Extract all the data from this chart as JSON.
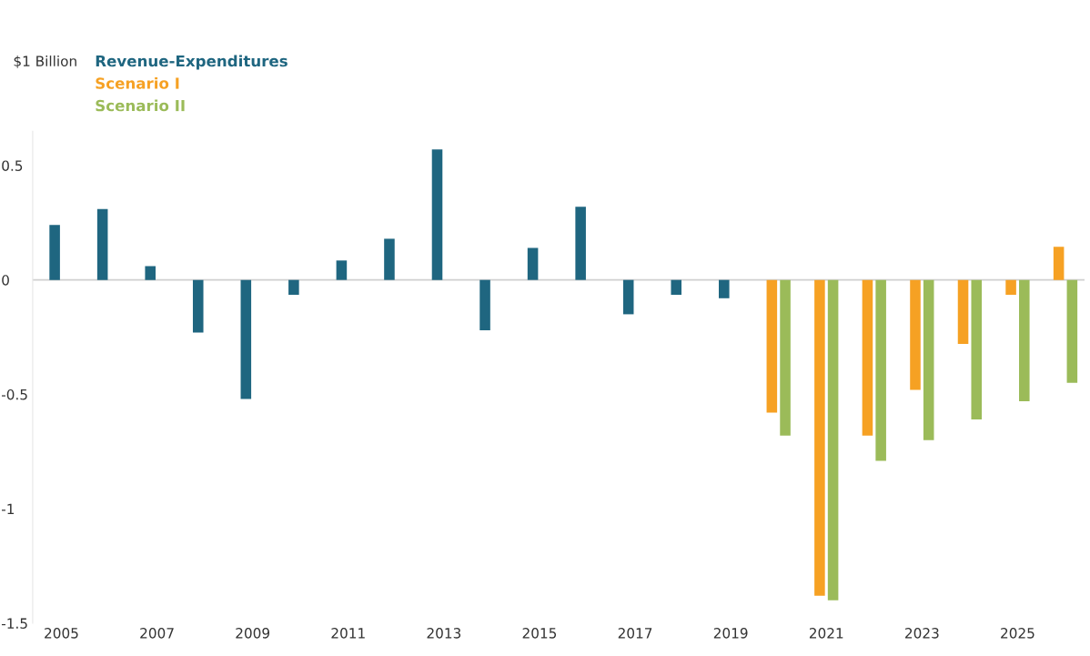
{
  "chart_data": {
    "type": "bar",
    "ylabel": "$1 Billion",
    "categories": [
      "2005",
      null,
      "2007",
      null,
      "2009",
      null,
      "2011",
      null,
      "2013",
      null,
      "2015",
      null,
      "2017",
      null,
      "2019",
      null,
      "2021",
      null,
      "2023",
      null,
      "2025",
      null
    ],
    "series": [
      {
        "name": "Revenue-Expenditures",
        "color": "#1f6680",
        "values": [
          0.24,
          0.31,
          0.06,
          -0.23,
          -0.52,
          -0.065,
          0.085,
          0.18,
          0.57,
          -0.22,
          0.14,
          0.32,
          -0.15,
          -0.065,
          -0.08,
          null,
          null,
          null,
          null,
          null,
          null,
          null
        ]
      },
      {
        "name": "Scenario I",
        "color": "#f6a123",
        "values": [
          null,
          null,
          null,
          null,
          null,
          null,
          null,
          null,
          null,
          null,
          null,
          null,
          null,
          null,
          null,
          -0.58,
          -1.38,
          -0.68,
          -0.48,
          -0.28,
          -0.065,
          0.145
        ]
      },
      {
        "name": "Scenario II",
        "color": "#9bbb59",
        "values": [
          null,
          null,
          null,
          null,
          null,
          null,
          null,
          null,
          null,
          null,
          null,
          null,
          null,
          null,
          null,
          -0.68,
          -1.4,
          -0.79,
          -0.7,
          -0.61,
          -0.53,
          -0.45
        ]
      }
    ],
    "ylim": [
      -1.5,
      0.65
    ],
    "yticks": [
      0.5,
      0,
      {
        "value": -0.5,
        "label": "-0.5"
      },
      {
        "value": -1,
        "label": "-1"
      },
      {
        "value": -1.5,
        "label": "-1.5"
      }
    ],
    "ref_lines": [
      {
        "axis": "y",
        "value": 0,
        "color": "#d0d0d0"
      }
    ],
    "grid": false,
    "legend": "top left"
  }
}
